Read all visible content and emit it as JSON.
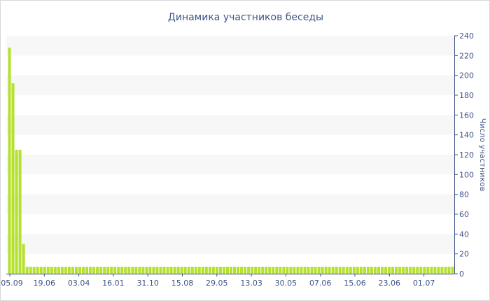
{
  "chart_data": {
    "type": "bar",
    "title": "Динамика участников беседы",
    "ylabel": "Число участников",
    "xlabel": "",
    "ylim": [
      0,
      240
    ],
    "yticks": [
      0,
      20,
      40,
      60,
      80,
      100,
      120,
      140,
      160,
      180,
      200,
      220,
      240
    ],
    "x_tick_labels": [
      "05.09",
      "19.06",
      "03.04",
      "16.01",
      "31.10",
      "15.08",
      "29.05",
      "13.03",
      "30.05",
      "07.06",
      "15.06",
      "23.06",
      "01.07"
    ],
    "grid": "alternating horizontal bands",
    "y_axis_position": "right",
    "values": [
      228,
      192,
      125,
      125,
      30,
      7,
      7,
      7,
      7,
      7,
      7,
      7,
      7,
      7,
      7,
      7,
      7,
      7,
      7,
      7,
      7,
      7,
      7,
      7,
      7,
      7,
      7,
      7,
      7,
      7,
      7,
      7,
      7,
      7,
      7,
      7,
      7,
      7,
      7,
      7,
      7,
      7,
      7,
      7,
      7,
      7,
      7,
      7,
      7,
      7,
      7,
      7,
      7,
      7,
      7,
      7,
      7,
      7,
      7,
      7,
      7,
      7,
      7,
      7,
      7,
      7,
      7,
      7,
      7,
      7,
      7,
      7,
      7,
      7,
      7,
      7,
      7,
      7,
      7,
      7,
      7,
      7,
      7,
      7,
      7,
      7,
      7,
      7,
      7,
      7,
      7,
      7,
      7,
      7,
      7,
      7,
      7,
      7,
      7,
      7,
      7,
      7,
      7,
      7,
      7,
      7,
      7,
      7,
      7,
      7,
      7,
      7,
      7,
      7,
      7,
      7,
      7,
      7,
      7,
      7,
      7,
      7,
      7,
      7,
      7,
      7,
      7
    ],
    "colors": {
      "bar": "#b5e02f",
      "band": "#f7f7f7",
      "axis": "#3e5586",
      "text": "#3e5586"
    }
  }
}
